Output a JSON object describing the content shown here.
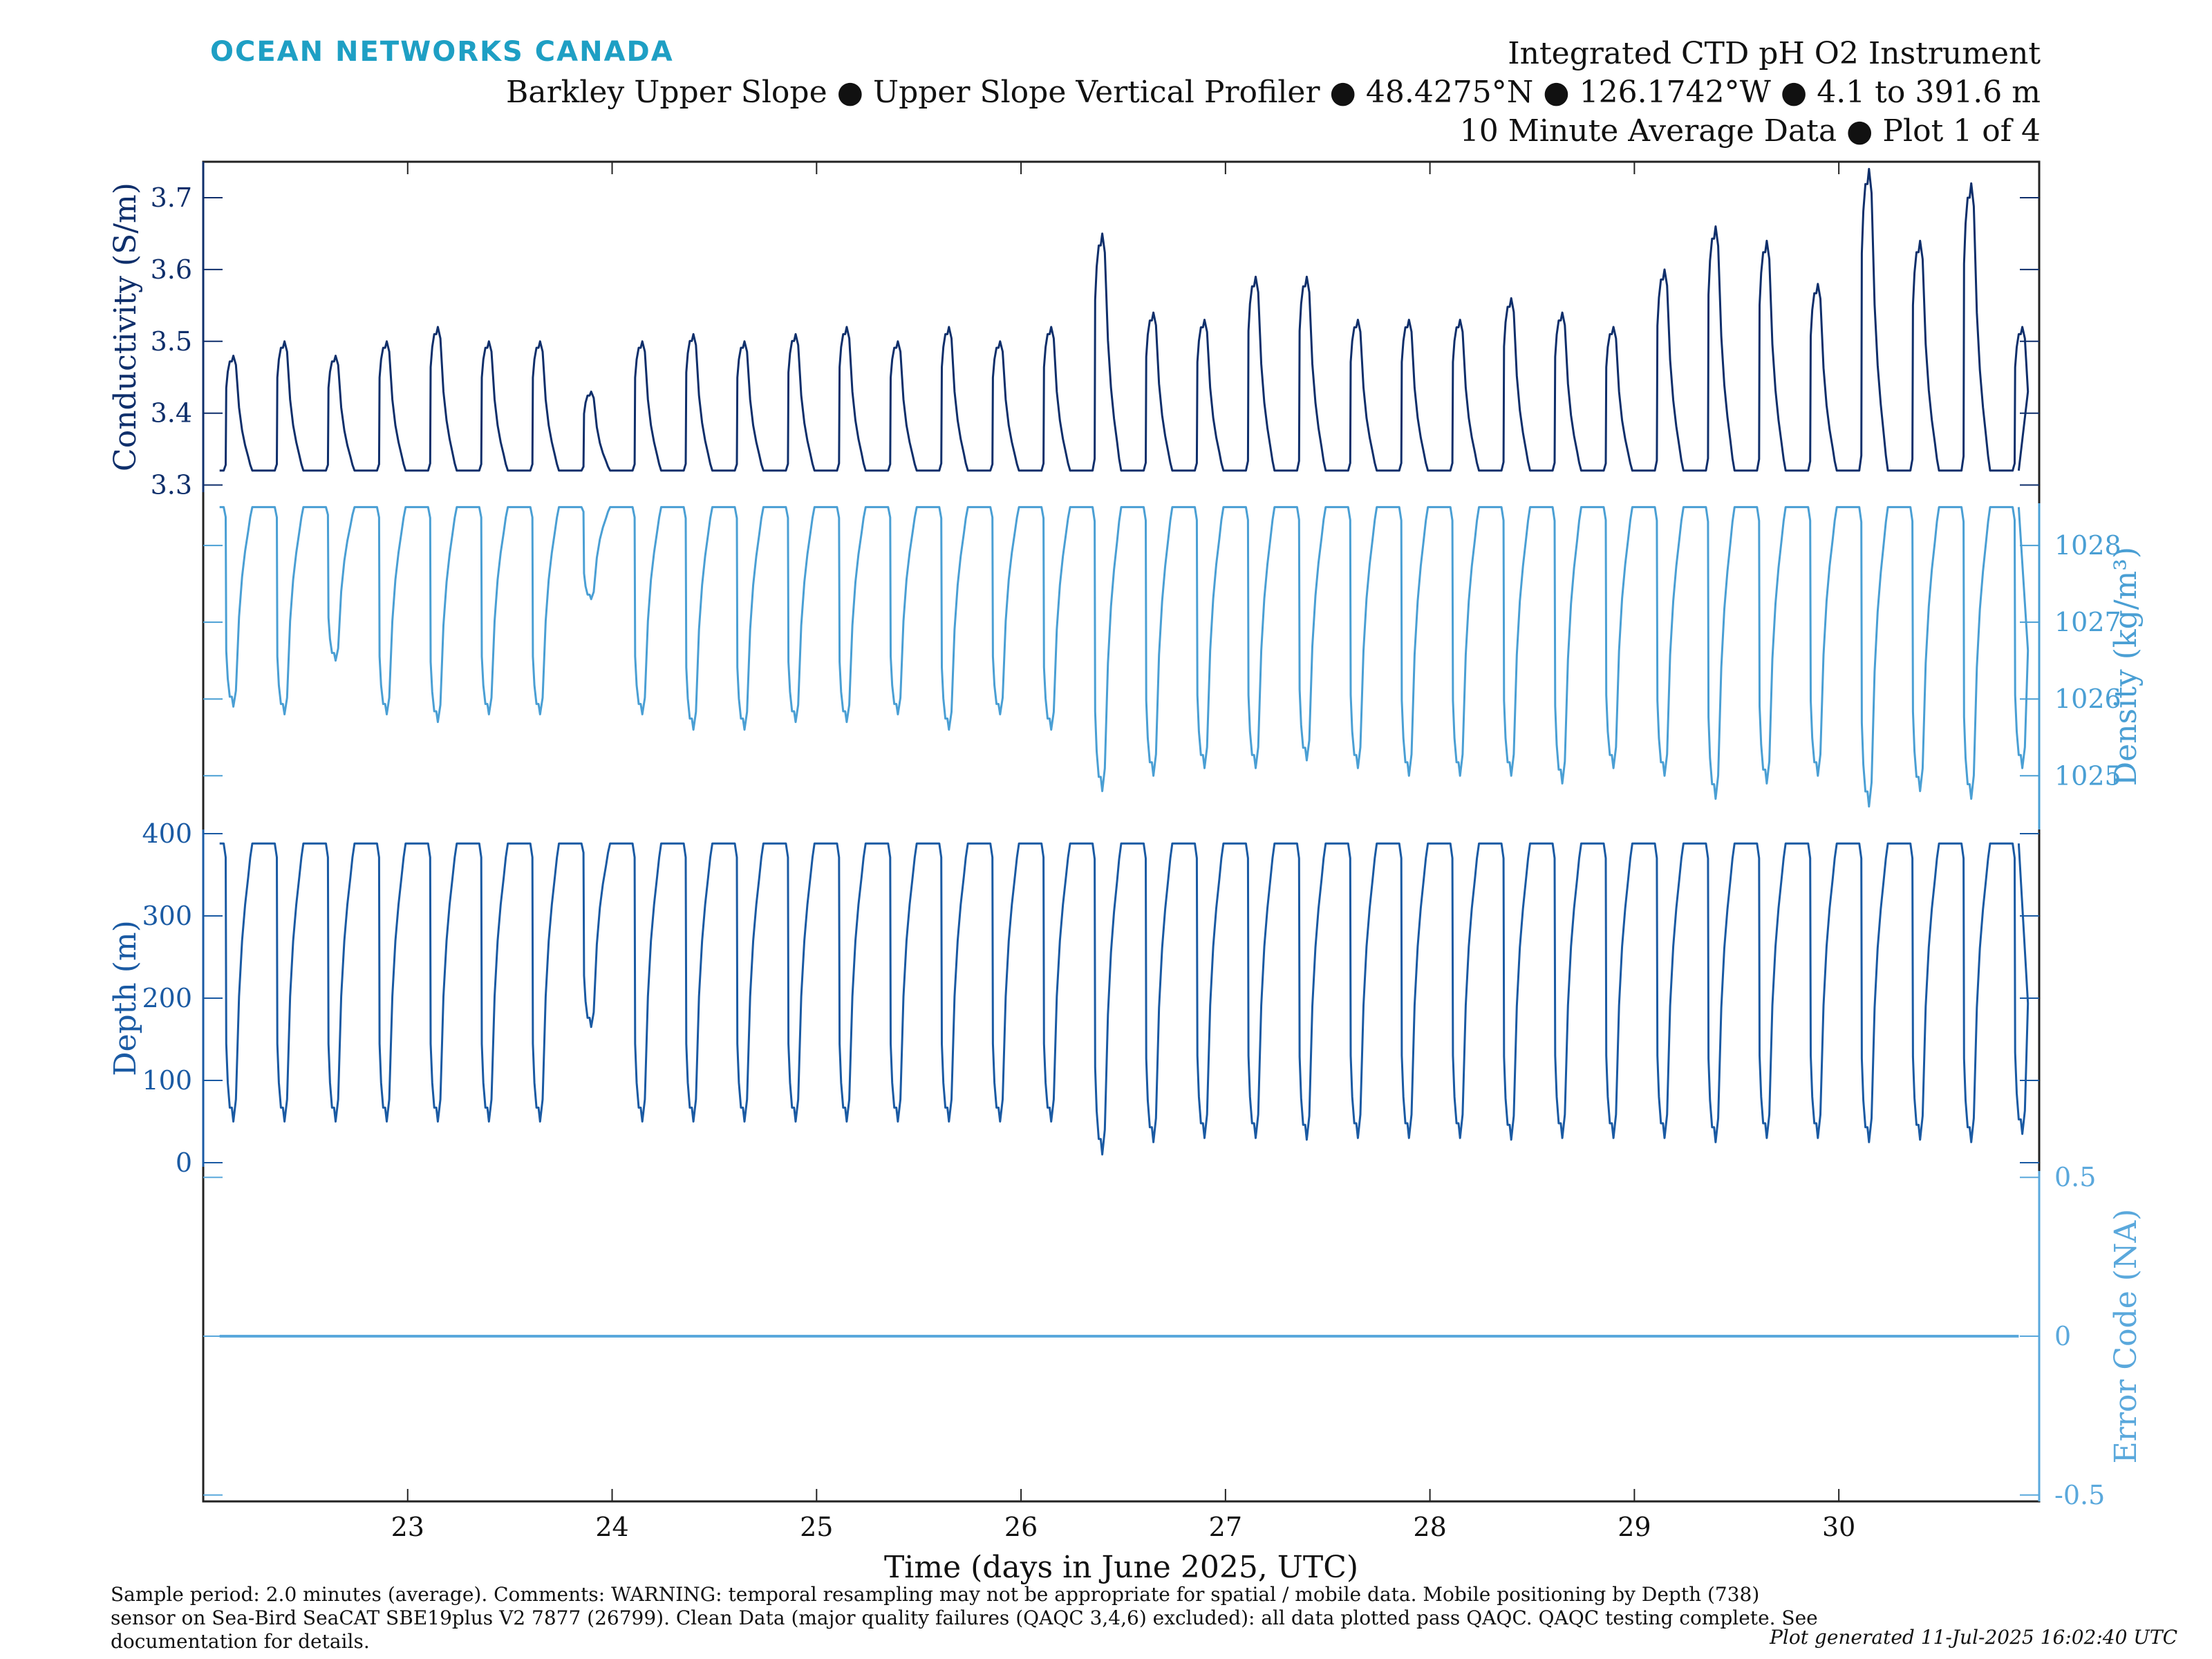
{
  "header": {
    "brand": "OCEAN NETWORKS CANADA",
    "title": "Integrated CTD pH O2 Instrument",
    "subtitle1": "Barkley Upper Slope ● Upper Slope Vertical Profiler ● 48.4275°N ● 126.1742°W ● 4.1 to 391.6 m",
    "subtitle2": "10 Minute Average Data ● Plot 1 of 4"
  },
  "footer": {
    "notes": "Sample period: 2.0 minutes (average). Comments: WARNING: temporal resampling may not be appropriate for spatial / mobile data. Mobile positioning by Depth (738) sensor on Sea-Bird SeaCAT SBE19plus V2 7877 (26799). Clean Data (major quality failures (QAQC 3,4,6) excluded): all data plotted pass QAQC. QAQC testing complete. See documentation for details.",
    "generated": "Plot generated 11-Jul-2025 16:02:40 UTC"
  },
  "colors": {
    "conductivity": "#0f2f6b",
    "density": "#4a9fd4",
    "depth": "#1a5aa3",
    "error": "#5aa8dc",
    "axis": "#222222"
  },
  "chart_data": {
    "type": "line",
    "xlabel": "Time (days in June 2025, UTC)",
    "xlim": [
      22.0,
      30.98
    ],
    "xticks": [
      23,
      24,
      25,
      26,
      27,
      28,
      29,
      30
    ],
    "profiles": {
      "start": 22.1,
      "period_days": 0.25,
      "count": 36,
      "comment": "Repeated vertical profiles, ~4 per day; each cycle: surface approach then descent to bottom and dwell"
    },
    "series": [
      {
        "name": "Conductivity (S/m)",
        "ylabel": "Conductivity (S/m)",
        "axis": "left",
        "ylim": [
          3.29,
          3.75
        ],
        "yticks": [
          3.3,
          3.4,
          3.5,
          3.6,
          3.7
        ],
        "baseline": 3.32,
        "peaks": [
          3.48,
          3.5,
          3.48,
          3.5,
          3.52,
          3.5,
          3.5,
          3.43,
          3.5,
          3.51,
          3.5,
          3.51,
          3.52,
          3.5,
          3.52,
          3.5,
          3.52,
          3.65,
          3.54,
          3.53,
          3.59,
          3.59,
          3.53,
          3.53,
          3.53,
          3.56,
          3.54,
          3.52,
          3.6,
          3.66,
          3.64,
          3.58,
          3.74,
          3.64,
          3.72,
          3.52
        ]
      },
      {
        "name": "Density (kg/m³)",
        "ylabel": "Density (kg/m³)",
        "axis": "right",
        "ylim": [
          1024.3,
          1028.55
        ],
        "yticks": [
          1025,
          1026,
          1027,
          1028
        ],
        "baseline": 1028.5,
        "minima": [
          1025.9,
          1025.8,
          1026.5,
          1025.8,
          1025.7,
          1025.8,
          1025.8,
          1027.3,
          1025.8,
          1025.6,
          1025.6,
          1025.7,
          1025.7,
          1025.8,
          1025.6,
          1025.8,
          1025.6,
          1024.8,
          1025.0,
          1025.1,
          1025.1,
          1025.2,
          1025.1,
          1025.0,
          1025.0,
          1025.0,
          1024.9,
          1025.1,
          1025.0,
          1024.7,
          1024.9,
          1025.0,
          1024.6,
          1024.8,
          1024.7,
          1025.1
        ]
      },
      {
        "name": "Depth (m)",
        "ylabel": "Depth (m)",
        "axis": "left",
        "ylim": [
          -5,
          405
        ],
        "yticks": [
          0,
          100,
          200,
          300,
          400
        ],
        "baseline": 388,
        "minima": [
          50,
          50,
          50,
          50,
          50,
          50,
          50,
          165,
          50,
          50,
          50,
          50,
          50,
          50,
          50,
          50,
          50,
          10,
          25,
          30,
          30,
          28,
          30,
          30,
          30,
          28,
          30,
          30,
          30,
          25,
          30,
          30,
          25,
          28,
          25,
          35
        ]
      },
      {
        "name": "Error Code (NA)",
        "ylabel": "Error Code (NA)",
        "axis": "right",
        "ylim": [
          -0.52,
          0.52
        ],
        "yticks": [
          -0.5,
          0,
          0.5
        ],
        "values": [
          0,
          0
        ]
      }
    ]
  }
}
